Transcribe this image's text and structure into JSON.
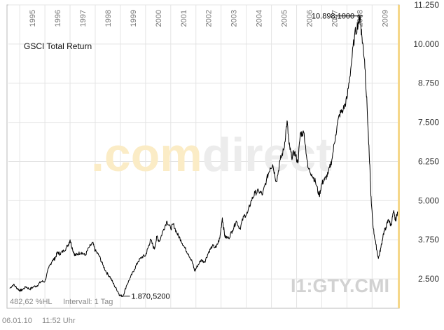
{
  "chart_data": {
    "type": "line",
    "title": "GSCI Total Return",
    "symbol": "I1:GTY.CMI",
    "watermark": ".comdirect",
    "x_tick_labels": [
      "1995",
      "1996",
      "1997",
      "1998",
      "1999",
      "2000",
      "2001",
      "2002",
      "2003",
      "2004",
      "2005",
      "2006",
      "2007",
      "2008",
      "2009"
    ],
    "y_tick_labels": [
      "11.250",
      "10.000",
      "8.750",
      "7.500",
      "6.250",
      "5.000",
      "3.750",
      "2.500"
    ],
    "y_ticks": [
      11250,
      10000,
      8750,
      7500,
      6250,
      5000,
      3750,
      2500
    ],
    "ylim": [
      1562.5,
      11250
    ],
    "xlim": [
      1994.55,
      2010.02
    ],
    "grid": true,
    "annotations": {
      "max_label": "10.898,1000",
      "min_label": "1.870,5200"
    },
    "series": [
      {
        "x": [
          1994.6,
          1994.75,
          1994.9,
          1995.0,
          1995.1,
          1995.25,
          1995.4,
          1995.55,
          1995.7,
          1995.85,
          1996.0,
          1996.15,
          1996.3,
          1996.4,
          1996.5,
          1996.6,
          1996.75,
          1996.9,
          1997.0,
          1997.1,
          1997.2,
          1997.3,
          1997.45,
          1997.6,
          1997.75,
          1997.9,
          1998.0,
          1998.15,
          1998.3,
          1998.45,
          1998.6,
          1998.75,
          1998.9,
          1998.97,
          1999.1,
          1999.25,
          1999.4,
          1999.55,
          1999.7,
          1999.85,
          2000.0,
          2000.1,
          2000.2,
          2000.35,
          2000.45,
          2000.55,
          2000.7,
          2000.85,
          2001.0,
          2001.1,
          2001.25,
          2001.4,
          2001.55,
          2001.7,
          2001.85,
          2001.95,
          2002.05,
          2002.2,
          2002.35,
          2002.5,
          2002.65,
          2002.8,
          2002.95,
          2003.05,
          2003.15,
          2003.3,
          2003.45,
          2003.6,
          2003.75,
          2003.9,
          2004.05,
          2004.2,
          2004.35,
          2004.5,
          2004.65,
          2004.8,
          2004.95,
          2005.05,
          2005.2,
          2005.35,
          2005.5,
          2005.62,
          2005.7,
          2005.8,
          2005.92,
          2006.05,
          2006.15,
          2006.3,
          2006.45,
          2006.6,
          2006.75,
          2006.9,
          2007.0,
          2007.1,
          2007.25,
          2007.4,
          2007.55,
          2007.7,
          2007.85,
          2008.0,
          2008.15,
          2008.3,
          2008.45,
          2008.52,
          2008.6,
          2008.7,
          2008.8,
          2008.9,
          2008.97,
          2009.05,
          2009.15,
          2009.25,
          2009.35,
          2009.45,
          2009.55,
          2009.65,
          2009.75,
          2009.85,
          2009.93,
          2010.01
        ],
        "y": [
          2200,
          2320,
          2200,
          2130,
          2150,
          2250,
          2170,
          2250,
          2290,
          2420,
          2420,
          2850,
          3100,
          3150,
          3350,
          3300,
          3400,
          3550,
          3750,
          3450,
          3250,
          3300,
          3350,
          3250,
          3500,
          3650,
          3400,
          3250,
          2950,
          2700,
          2550,
          2300,
          2100,
          1980,
          1950,
          2300,
          2550,
          2800,
          3050,
          3200,
          3250,
          3500,
          3750,
          3450,
          3850,
          3700,
          4050,
          4350,
          4100,
          4250,
          3950,
          3750,
          3500,
          3300,
          3050,
          2750,
          2900,
          3100,
          3050,
          3350,
          3550,
          3500,
          3800,
          4450,
          3850,
          3800,
          4050,
          4350,
          4100,
          4500,
          4600,
          5000,
          5250,
          5300,
          5200,
          5650,
          6050,
          6150,
          5600,
          6300,
          6650,
          7550,
          6800,
          6400,
          6550,
          6200,
          7150,
          7150,
          6050,
          5850,
          5600,
          5150,
          5550,
          5650,
          5850,
          6300,
          7100,
          7750,
          7900,
          8250,
          9200,
          10250,
          10700,
          10898,
          10200,
          9500,
          8000,
          6200,
          4900,
          4100,
          3600,
          3150,
          3500,
          3950,
          4150,
          4400,
          4200,
          4650,
          4350,
          4650
        ]
      }
    ]
  },
  "footer": {
    "performance": "482,62 %HL",
    "interval": "Intervall: 1 Tag",
    "date": "06.01.10",
    "time": "11:52 Uhr"
  },
  "colors": {
    "line": "#000000",
    "grid": "#e4e4e4",
    "border": "#bbbbbb",
    "right_axis_bar": "#f5d78a",
    "watermark_orange": "#fbecc6",
    "watermark_gray": "#ececec",
    "symbol": "#d2d2d2",
    "label": "#888888",
    "text": "#333333"
  }
}
